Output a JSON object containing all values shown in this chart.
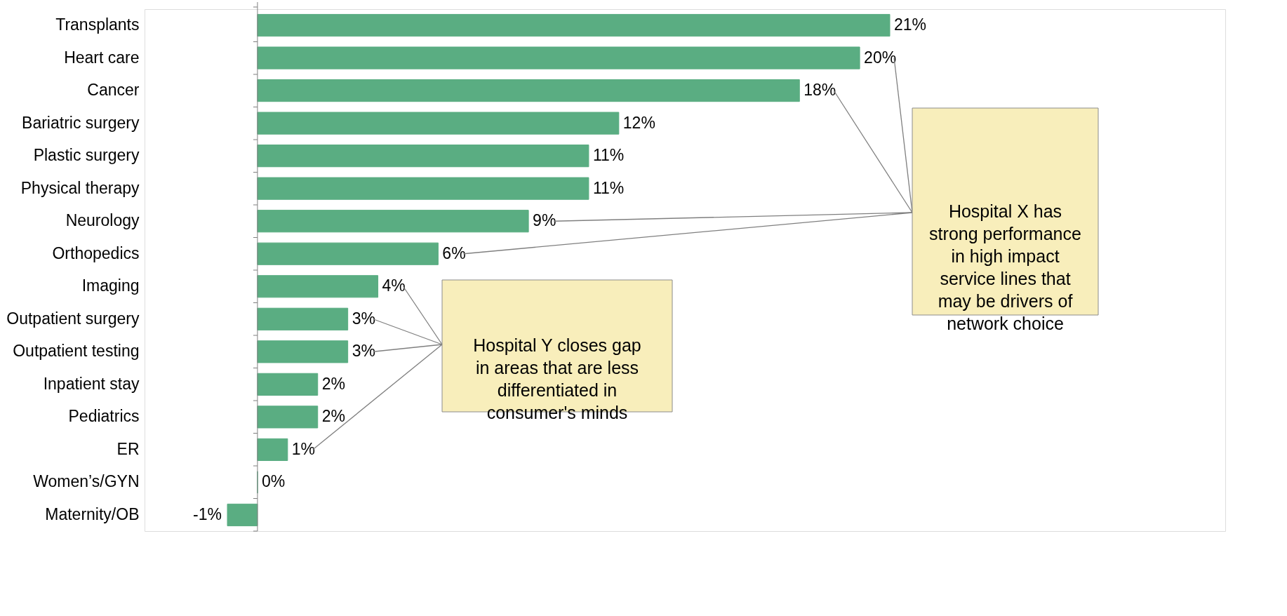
{
  "chart_data": {
    "type": "bar",
    "orientation": "horizontal",
    "tick_labels": "y",
    "color": "#5aad82",
    "categories": [
      "Transplants",
      "Heart care",
      "Cancer",
      "Bariatric surgery",
      "Plastic surgery",
      "Physical therapy",
      "Neurology",
      "Orthopedics",
      "Imaging",
      "Outpatient surgery",
      "Outpatient testing",
      "Inpatient stay",
      "Pediatrics",
      "ER",
      "Women’s/GYN",
      "Maternity/OB"
    ],
    "values": [
      21,
      20,
      18,
      12,
      11,
      11,
      9,
      6,
      4,
      3,
      3,
      2,
      2,
      1,
      0,
      -1
    ],
    "value_labels": [
      "21%",
      "20%",
      "18%",
      "12%",
      "11%",
      "11%",
      "9%",
      "6%",
      "4%",
      "3%",
      "3%",
      "2%",
      "2%",
      "1%",
      "0%",
      "-1%"
    ],
    "annotations": [
      "Hospital X has strong performance in high impact service lines that may be drivers of network choice",
      "Hospital Y closes gap in areas that are less differentiated in consumer's minds"
    ]
  }
}
